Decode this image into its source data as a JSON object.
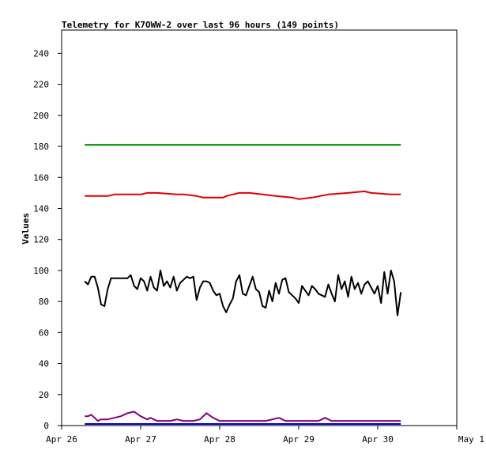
{
  "chart_data": {
    "type": "line",
    "title": "Telemetry for K7OWW-2 over last 96 hours (149 points)",
    "xlabel": "",
    "ylabel": "Values",
    "xlim": [
      "2025-04-26 00:00",
      "2025-05-01 00:00"
    ],
    "ylim": [
      0,
      255
    ],
    "x_ticks": [
      "Apr 26",
      "Apr 27",
      "Apr 28",
      "Apr 29",
      "Apr 30",
      "May 1"
    ],
    "y_ticks": [
      0,
      20,
      40,
      60,
      80,
      100,
      120,
      140,
      160,
      180,
      200,
      220,
      240
    ],
    "grid": false,
    "legend": "none",
    "series": [
      {
        "color": "#008f00",
        "x": [
          "2025-04-26 07:00",
          "2025-04-30 07:00"
        ],
        "values": [
          181,
          181
        ]
      },
      {
        "color": "#e00000",
        "x": [
          "2025-04-26 07:00",
          "2025-04-26 14:00",
          "2025-04-26 16:00",
          "2025-04-27 00:00",
          "2025-04-27 02:00",
          "2025-04-27 05:00",
          "2025-04-27 11:00",
          "2025-04-27 13:00",
          "2025-04-27 17:00",
          "2025-04-27 19:00",
          "2025-04-28 01:00",
          "2025-04-28 02:00",
          "2025-04-28 04:00",
          "2025-04-28 06:00",
          "2025-04-28 09:00",
          "2025-04-28 13:00",
          "2025-04-28 17:00",
          "2025-04-28 22:00",
          "2025-04-29 00:00",
          "2025-04-29 04:00",
          "2025-04-29 09:00",
          "2025-04-29 15:00",
          "2025-04-29 20:00",
          "2025-04-29 22:00",
          "2025-04-30 04:00",
          "2025-04-30 07:00"
        ],
        "values": [
          148,
          148,
          149,
          149,
          150,
          150,
          149,
          149,
          148,
          147,
          147,
          148,
          149,
          150,
          150,
          149,
          148,
          147,
          146,
          147,
          149,
          150,
          151,
          150,
          149,
          149
        ]
      },
      {
        "color": "#000000",
        "x": [
          "2025-04-26 07:00",
          "2025-04-26 08:00",
          "2025-04-26 09:00",
          "2025-04-26 10:00",
          "2025-04-26 11:00",
          "2025-04-26 12:00",
          "2025-04-26 13:00",
          "2025-04-26 14:00",
          "2025-04-26 15:00",
          "2025-04-26 16:00",
          "2025-04-26 17:00",
          "2025-04-26 18:00",
          "2025-04-26 19:00",
          "2025-04-26 20:00",
          "2025-04-26 21:00",
          "2025-04-26 22:00",
          "2025-04-26 23:00",
          "2025-04-27 00:00",
          "2025-04-27 01:00",
          "2025-04-27 02:00",
          "2025-04-27 03:00",
          "2025-04-27 04:00",
          "2025-04-27 05:00",
          "2025-04-27 06:00",
          "2025-04-27 07:00",
          "2025-04-27 08:00",
          "2025-04-27 09:00",
          "2025-04-27 10:00",
          "2025-04-27 11:00",
          "2025-04-27 12:00",
          "2025-04-27 13:00",
          "2025-04-27 14:00",
          "2025-04-27 15:00",
          "2025-04-27 16:00",
          "2025-04-27 17:00",
          "2025-04-27 18:00",
          "2025-04-27 19:00",
          "2025-04-27 20:00",
          "2025-04-27 21:00",
          "2025-04-27 22:00",
          "2025-04-27 23:00",
          "2025-04-28 00:00",
          "2025-04-28 01:00",
          "2025-04-28 02:00",
          "2025-04-28 03:00",
          "2025-04-28 04:00",
          "2025-04-28 05:00",
          "2025-04-28 06:00",
          "2025-04-28 07:00",
          "2025-04-28 08:00",
          "2025-04-28 09:00",
          "2025-04-28 10:00",
          "2025-04-28 11:00",
          "2025-04-28 12:00",
          "2025-04-28 13:00",
          "2025-04-28 14:00",
          "2025-04-28 15:00",
          "2025-04-28 16:00",
          "2025-04-28 17:00",
          "2025-04-28 18:00",
          "2025-04-28 19:00",
          "2025-04-28 20:00",
          "2025-04-28 21:00",
          "2025-04-28 22:00",
          "2025-04-28 23:00",
          "2025-04-29 00:00",
          "2025-04-29 01:00",
          "2025-04-29 02:00",
          "2025-04-29 03:00",
          "2025-04-29 04:00",
          "2025-04-29 05:00",
          "2025-04-29 06:00",
          "2025-04-29 07:00",
          "2025-04-29 08:00",
          "2025-04-29 09:00",
          "2025-04-29 10:00",
          "2025-04-29 11:00",
          "2025-04-29 12:00",
          "2025-04-29 13:00",
          "2025-04-29 14:00",
          "2025-04-29 15:00",
          "2025-04-29 16:00",
          "2025-04-29 17:00",
          "2025-04-29 18:00",
          "2025-04-29 19:00",
          "2025-04-29 20:00",
          "2025-04-29 21:00",
          "2025-04-29 22:00",
          "2025-04-29 23:00",
          "2025-04-30 00:00",
          "2025-04-30 01:00",
          "2025-04-30 02:00",
          "2025-04-30 03:00",
          "2025-04-30 04:00",
          "2025-04-30 05:00",
          "2025-04-30 06:00",
          "2025-04-30 07:00"
        ],
        "values": [
          93,
          91,
          96,
          96,
          89,
          78,
          77,
          88,
          95,
          95,
          95,
          95,
          95,
          95,
          97,
          90,
          88,
          95,
          93,
          87,
          96,
          89,
          87,
          100,
          90,
          93,
          89,
          96,
          87,
          92,
          94,
          96,
          95,
          96,
          81,
          89,
          93,
          93,
          92,
          87,
          84,
          85,
          77,
          73,
          78,
          82,
          93,
          97,
          85,
          84,
          90,
          96,
          88,
          86,
          77,
          76,
          87,
          80,
          92,
          85,
          94,
          95,
          86,
          84,
          82,
          79,
          90,
          87,
          84,
          90,
          88,
          85,
          84,
          83,
          91,
          85,
          80,
          97,
          88,
          93,
          83,
          96,
          88,
          92,
          85,
          91,
          93,
          89,
          85,
          90,
          79,
          99,
          85,
          100,
          93,
          71,
          86
        ]
      },
      {
        "color": "#800080",
        "x": [
          "2025-04-26 07:00",
          "2025-04-26 08:00",
          "2025-04-26 09:00",
          "2025-04-26 10:00",
          "2025-04-26 11:00",
          "2025-04-26 12:00",
          "2025-04-26 14:00",
          "2025-04-26 16:00",
          "2025-04-26 18:00",
          "2025-04-26 20:00",
          "2025-04-26 22:00",
          "2025-04-27 00:00",
          "2025-04-27 02:00",
          "2025-04-27 03:00",
          "2025-04-27 05:00",
          "2025-04-27 07:00",
          "2025-04-27 09:00",
          "2025-04-27 11:00",
          "2025-04-27 13:00",
          "2025-04-27 16:00",
          "2025-04-27 18:00",
          "2025-04-27 20:00",
          "2025-04-27 22:00",
          "2025-04-28 00:00",
          "2025-04-28 02:00",
          "2025-04-28 04:00",
          "2025-04-28 08:00",
          "2025-04-28 10:00",
          "2025-04-28 12:00",
          "2025-04-28 14:00",
          "2025-04-28 18:00",
          "2025-04-28 20:00",
          "2025-04-29 00:00",
          "2025-04-29 03:00",
          "2025-04-29 06:00",
          "2025-04-29 08:00",
          "2025-04-29 10:00",
          "2025-04-29 15:00",
          "2025-04-29 17:00",
          "2025-04-29 19:00",
          "2025-04-29 21:00",
          "2025-04-30 00:00",
          "2025-04-30 02:00",
          "2025-04-30 04:00",
          "2025-04-30 07:00"
        ],
        "values": [
          6,
          6,
          7,
          5,
          3,
          4,
          4,
          5,
          6,
          8,
          9,
          6,
          4,
          5,
          3,
          3,
          3,
          4,
          3,
          3,
          4,
          8,
          5,
          3,
          3,
          3,
          3,
          3,
          3,
          3,
          5,
          3,
          3,
          3,
          3,
          5,
          3,
          3,
          3,
          3,
          3,
          3,
          3,
          3,
          3
        ]
      },
      {
        "color": "#0000c0",
        "x": [
          "2025-04-26 07:00",
          "2025-04-30 07:00"
        ],
        "values": [
          1,
          1
        ]
      }
    ]
  }
}
